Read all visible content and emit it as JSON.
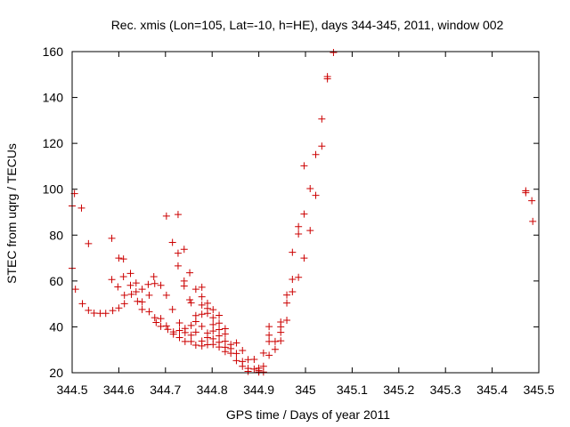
{
  "chart_data": {
    "type": "scatter",
    "title": "Rec. xmis (Lon=105, Lat=-10, h=HE), days 344-345, 2011, window 002",
    "xlabel": "GPS time / Days of year 2011",
    "ylabel": "STEC from uqrg / TECUs",
    "xlim": [
      344.5,
      345.5
    ],
    "ylim": [
      20,
      160
    ],
    "xticks": [
      "344.5",
      "344.6",
      "344.7",
      "344.8",
      "344.9",
      "345",
      "345.1",
      "345.2",
      "345.3",
      "345.4",
      "345.5"
    ],
    "yticks": [
      "20",
      "40",
      "60",
      "80",
      "100",
      "120",
      "140",
      "160"
    ],
    "xtick_values": [
      344.5,
      344.6,
      344.7,
      344.8,
      344.9,
      345.0,
      345.1,
      345.2,
      345.3,
      345.4,
      345.5
    ],
    "ytick_values": [
      20,
      40,
      60,
      80,
      100,
      120,
      140,
      160
    ],
    "marker": "+",
    "marker_color": "#cc0000",
    "grid": false,
    "points": [
      [
        344.5,
        92.7
      ],
      [
        344.5,
        65.5
      ],
      [
        344.505,
        98.1
      ],
      [
        344.507,
        56.4
      ],
      [
        344.52,
        91.8
      ],
      [
        344.522,
        50.1
      ],
      [
        344.535,
        76.3
      ],
      [
        344.535,
        47.2
      ],
      [
        344.547,
        46.0
      ],
      [
        344.56,
        45.9
      ],
      [
        344.572,
        45.9
      ],
      [
        344.585,
        78.6
      ],
      [
        344.585,
        60.6
      ],
      [
        344.587,
        47.1
      ],
      [
        344.598,
        57.4
      ],
      [
        344.6,
        70.0
      ],
      [
        344.6,
        48.2
      ],
      [
        344.61,
        69.6
      ],
      [
        344.61,
        61.9
      ],
      [
        344.612,
        53.8
      ],
      [
        344.612,
        50.1
      ],
      [
        344.625,
        63.3
      ],
      [
        344.625,
        58.1
      ],
      [
        344.627,
        54.2
      ],
      [
        344.637,
        59.1
      ],
      [
        344.637,
        55.3
      ],
      [
        344.64,
        51.1
      ],
      [
        344.65,
        56.4
      ],
      [
        344.65,
        50.9
      ],
      [
        344.65,
        47.6
      ],
      [
        344.663,
        58.5
      ],
      [
        344.665,
        53.8
      ],
      [
        344.665,
        46.6
      ],
      [
        344.675,
        61.9
      ],
      [
        344.677,
        58.9
      ],
      [
        344.677,
        44.0
      ],
      [
        344.68,
        41.9
      ],
      [
        344.69,
        58.1
      ],
      [
        344.69,
        43.6
      ],
      [
        344.69,
        40.2
      ],
      [
        344.702,
        88.3
      ],
      [
        344.702,
        53.8
      ],
      [
        344.702,
        40.4
      ],
      [
        344.705,
        38.9
      ],
      [
        344.715,
        76.8
      ],
      [
        344.715,
        47.6
      ],
      [
        344.717,
        37.8
      ],
      [
        344.717,
        36.8
      ],
      [
        344.727,
        89.0
      ],
      [
        344.727,
        72.1
      ],
      [
        344.727,
        66.6
      ],
      [
        344.73,
        41.7
      ],
      [
        344.73,
        38.4
      ],
      [
        344.73,
        35.3
      ],
      [
        344.74,
        73.8
      ],
      [
        344.74,
        60.0
      ],
      [
        344.74,
        57.8
      ],
      [
        344.742,
        39.3
      ],
      [
        344.742,
        37.5
      ],
      [
        344.742,
        33.6
      ],
      [
        344.752,
        63.6
      ],
      [
        344.752,
        51.8
      ],
      [
        344.755,
        50.5
      ],
      [
        344.755,
        40.6
      ],
      [
        344.755,
        36.4
      ],
      [
        344.755,
        33.6
      ],
      [
        344.765,
        56.4
      ],
      [
        344.765,
        44.9
      ],
      [
        344.765,
        42.3
      ],
      [
        344.765,
        37.7
      ],
      [
        344.765,
        32.0
      ],
      [
        344.778,
        57.3
      ],
      [
        344.778,
        53.1
      ],
      [
        344.778,
        49.5
      ],
      [
        344.778,
        45.5
      ],
      [
        344.778,
        40.2
      ],
      [
        344.778,
        33.8
      ],
      [
        344.778,
        31.7
      ],
      [
        344.79,
        50.3
      ],
      [
        344.79,
        48.0
      ],
      [
        344.79,
        45.9
      ],
      [
        344.79,
        37.3
      ],
      [
        344.79,
        35.3
      ],
      [
        344.79,
        32.2
      ],
      [
        344.802,
        47.5
      ],
      [
        344.802,
        44.0
      ],
      [
        344.802,
        41.0
      ],
      [
        344.802,
        38.2
      ],
      [
        344.802,
        34.8
      ],
      [
        344.802,
        32.3
      ],
      [
        344.815,
        45.0
      ],
      [
        344.815,
        41.6
      ],
      [
        344.815,
        38.8
      ],
      [
        344.815,
        36.1
      ],
      [
        344.815,
        33.3
      ],
      [
        344.815,
        31.2
      ],
      [
        344.828,
        39.2
      ],
      [
        344.828,
        36.9
      ],
      [
        344.828,
        33.7
      ],
      [
        344.828,
        31.1
      ],
      [
        344.828,
        29.2
      ],
      [
        344.84,
        32.3
      ],
      [
        344.84,
        30.5
      ],
      [
        344.84,
        28.5
      ],
      [
        344.852,
        33.0
      ],
      [
        344.852,
        28.4
      ],
      [
        344.852,
        25.3
      ],
      [
        344.865,
        29.7
      ],
      [
        344.865,
        24.9
      ],
      [
        344.865,
        22.8
      ],
      [
        344.877,
        25.7
      ],
      [
        344.877,
        21.9
      ],
      [
        344.877,
        20.6
      ],
      [
        344.89,
        25.8
      ],
      [
        344.89,
        21.6
      ],
      [
        344.9,
        22.0
      ],
      [
        344.9,
        20.9
      ],
      [
        344.9,
        20.3
      ],
      [
        344.91,
        28.6
      ],
      [
        344.91,
        22.8
      ],
      [
        344.91,
        20.3
      ],
      [
        344.922,
        40.1
      ],
      [
        344.922,
        36.4
      ],
      [
        344.922,
        33.6
      ],
      [
        344.922,
        27.6
      ],
      [
        344.935,
        33.6
      ],
      [
        344.935,
        30.2
      ],
      [
        344.947,
        42.1
      ],
      [
        344.947,
        40.0
      ],
      [
        344.947,
        37.6
      ],
      [
        344.947,
        33.9
      ],
      [
        344.96,
        53.9
      ],
      [
        344.96,
        50.4
      ],
      [
        344.96,
        42.9
      ],
      [
        344.972,
        72.5
      ],
      [
        344.972,
        60.7
      ],
      [
        344.972,
        55.3
      ],
      [
        344.985,
        83.7
      ],
      [
        344.985,
        80.5
      ],
      [
        344.985,
        61.6
      ],
      [
        344.997,
        110.2
      ],
      [
        344.997,
        89.2
      ],
      [
        344.997,
        70.0
      ],
      [
        345.01,
        100.3
      ],
      [
        345.01,
        82.0
      ],
      [
        345.022,
        115.1
      ],
      [
        345.022,
        97.3
      ],
      [
        345.035,
        130.6
      ],
      [
        345.035,
        118.8
      ],
      [
        345.047,
        149.1
      ],
      [
        345.047,
        148.1
      ],
      [
        345.06,
        159.6
      ],
      [
        345.472,
        98.5
      ],
      [
        345.472,
        99.3
      ],
      [
        345.485,
        95.0
      ],
      [
        345.487,
        86.0
      ]
    ]
  }
}
